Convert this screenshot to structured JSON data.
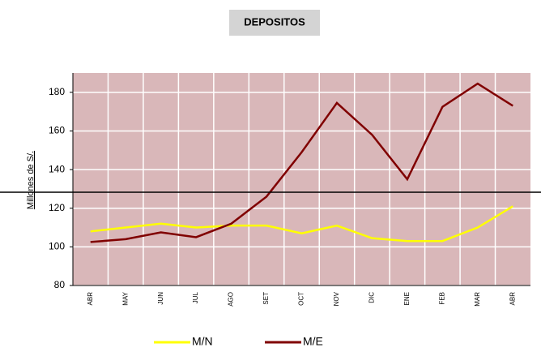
{
  "chart_data": {
    "type": "line",
    "title": "DEPOSITOS",
    "y_label": "Millones de S/.",
    "categories": [
      "ABR",
      "MAY",
      "JUN",
      "JUL",
      "AGO",
      "SET",
      "OCT",
      "NOV",
      "DIC",
      "ENE",
      "FEB",
      "MAR",
      "ABR"
    ],
    "series": [
      {
        "name": "M/N",
        "color": "#ffff00",
        "values": [
          108,
          110,
          112,
          110,
          111,
          111,
          107,
          111,
          104.5,
          103,
          103,
          110,
          121
        ]
      },
      {
        "name": "M/E",
        "color": "#800000",
        "values": [
          102.5,
          104,
          107.5,
          105,
          112,
          126,
          149,
          174.5,
          158,
          135,
          172.5,
          184.5,
          173
        ]
      }
    ],
    "ylim": [
      80,
      190
    ],
    "yticks": [
      80,
      100,
      120,
      140,
      160,
      180
    ],
    "grid": true,
    "plot_color": "#d9b7b9"
  }
}
